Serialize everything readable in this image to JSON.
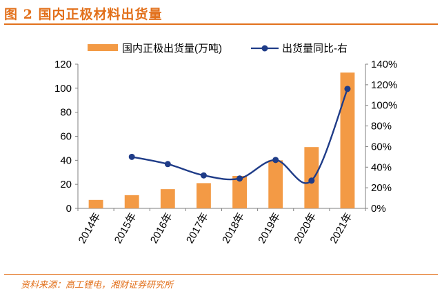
{
  "title": "图 2 国内正极材料出货量",
  "source": "资料来源：高工锂电，湘财证券研究所",
  "chart_data": {
    "type": "bar+line",
    "categories": [
      "2014年",
      "2015年",
      "2016年",
      "2017年",
      "2018年",
      "2019年",
      "2020年",
      "2021年"
    ],
    "series": [
      {
        "name": "国内正极出货量(万吨)",
        "type": "bar",
        "axis": "left",
        "color": "#f39a45",
        "values": [
          7,
          11,
          16,
          21,
          27,
          40,
          51,
          113
        ]
      },
      {
        "name": "出货量同比-右",
        "type": "line",
        "axis": "right",
        "color": "#1f3c88",
        "values": [
          null,
          50,
          43,
          32,
          29,
          47,
          27,
          116
        ]
      }
    ],
    "y_left": {
      "min": 0,
      "max": 120,
      "ticks": [
        "0",
        "20",
        "40",
        "60",
        "80",
        "100",
        "120"
      ]
    },
    "y_right": {
      "min": 0,
      "max": 140,
      "ticks": [
        "0%",
        "20%",
        "40%",
        "60%",
        "80%",
        "100%",
        "120%",
        "140%"
      ]
    }
  }
}
